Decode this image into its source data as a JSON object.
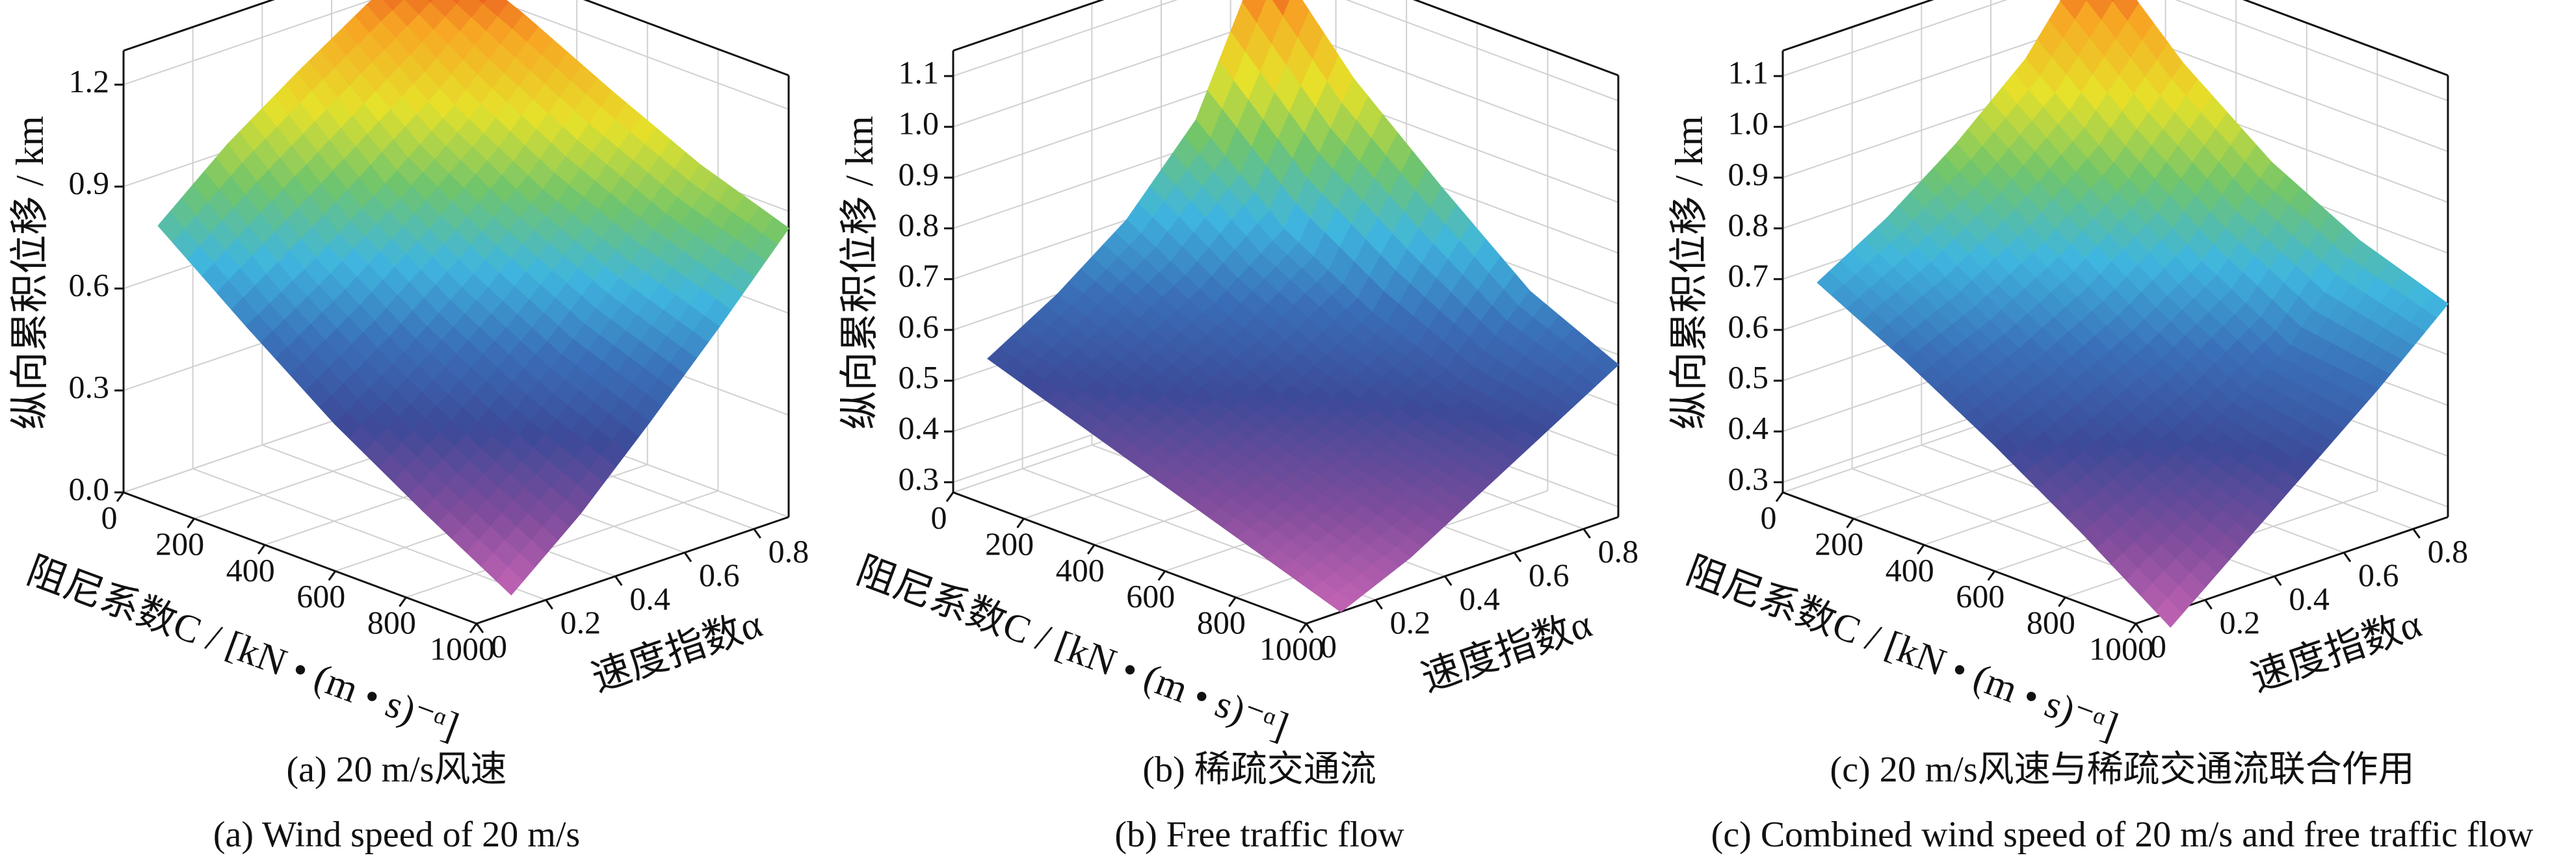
{
  "chart_data": [
    {
      "type": "surface",
      "title": "(a) 20 m/s风速",
      "subtitle": "(a) Wind speed of 20 m/s",
      "xlabel": "阻尼系数C / [kN • (m • s)⁻ᵅ]",
      "ylabel": "速度指数α",
      "zlabel": "纵向累积位移 / km",
      "x": [
        0,
        250,
        500,
        750,
        1000
      ],
      "y": [
        0.1,
        0.3,
        0.5,
        0.7,
        0.9
      ],
      "values": [
        [
          0.75,
          0.92,
          1.06,
          1.19,
          1.3
        ],
        [
          0.55,
          0.68,
          0.83,
          0.99,
          1.19
        ],
        [
          0.36,
          0.5,
          0.66,
          0.84,
          1.06
        ],
        [
          0.2,
          0.35,
          0.52,
          0.72,
          0.94
        ],
        [
          0.05,
          0.22,
          0.42,
          0.63,
          0.85
        ]
      ],
      "xlim": [
        0,
        1000
      ],
      "xticks": [
        0,
        200,
        400,
        600,
        800,
        1000
      ],
      "ylim": [
        0,
        0.9
      ],
      "yticks": [
        0,
        0.2,
        0.4,
        0.6,
        0.8
      ],
      "zlim": [
        0,
        1.3
      ],
      "zticks": [
        {
          "value": 0,
          "label": "0.0"
        },
        0.3,
        0.6,
        0.9,
        1.2
      ],
      "grid": true,
      "colormap": [
        "#c664b4",
        "#7e4c9c",
        "#3c4a98",
        "#3a6fb8",
        "#3fb6df",
        "#71c56b",
        "#e6e12a",
        "#f7a624",
        "#e3271f"
      ]
    },
    {
      "type": "surface",
      "title": "(b) 稀疏交通流",
      "subtitle": "(b) Free traffic flow",
      "xlabel": "阻尼系数C / [kN • (m • s)⁻ᵅ]",
      "ylabel": "速度指数α",
      "zlabel": "纵向累积位移  /  km",
      "x": [
        0,
        250,
        500,
        750,
        1000
      ],
      "y": [
        0.1,
        0.3,
        0.5,
        0.7,
        0.9
      ],
      "values": [
        [
          0.52,
          0.6,
          0.7,
          0.85,
          1.15
        ],
        [
          0.46,
          0.53,
          0.6,
          0.7,
          0.95
        ],
        [
          0.4,
          0.46,
          0.52,
          0.6,
          0.8
        ],
        [
          0.34,
          0.4,
          0.46,
          0.53,
          0.66
        ],
        [
          0.28,
          0.34,
          0.42,
          0.5,
          0.58
        ]
      ],
      "xlim": [
        0,
        1000
      ],
      "xticks": [
        0,
        200,
        400,
        600,
        800,
        1000
      ],
      "ylim": [
        0,
        0.9
      ],
      "yticks": [
        0,
        0.2,
        0.4,
        0.6,
        0.8
      ],
      "zlim": [
        0.28,
        1.15
      ],
      "zticks": [
        0.3,
        0.4,
        0.5,
        0.6,
        0.7,
        0.8,
        0.9,
        {
          "value": 1,
          "label": "1.0"
        },
        1.1
      ],
      "grid": true,
      "colormap": [
        "#c664b4",
        "#7e4c9c",
        "#3c4a98",
        "#3a6fb8",
        "#3fb6df",
        "#71c56b",
        "#e6e12a",
        "#f7a624",
        "#e3271f"
      ]
    },
    {
      "type": "surface",
      "title": "(c) 20 m/s风速与稀疏交通流联合作用",
      "subtitle": "(c) Combined wind speed of 20 m/s and free traffic flow",
      "xlabel": "阻尼系数C / [kN • (m • s)⁻ᵅ]",
      "ylabel": "速度指数α",
      "zlabel": "纵向累积位移  /  km",
      "x": [
        0,
        250,
        500,
        750,
        1000
      ],
      "y": [
        0.1,
        0.3,
        0.5,
        0.7,
        0.9
      ],
      "values": [
        [
          0.67,
          0.75,
          0.85,
          0.97,
          1.15
        ],
        [
          0.58,
          0.64,
          0.72,
          0.83,
          0.98
        ],
        [
          0.48,
          0.54,
          0.61,
          0.7,
          0.85
        ],
        [
          0.37,
          0.44,
          0.51,
          0.6,
          0.76
        ],
        [
          0.25,
          0.36,
          0.47,
          0.58,
          0.7
        ]
      ],
      "xlim": [
        0,
        1000
      ],
      "xticks": [
        0,
        200,
        400,
        600,
        800,
        1000
      ],
      "ylim": [
        0,
        0.9
      ],
      "yticks": [
        0,
        0.2,
        0.4,
        0.6,
        0.8
      ],
      "zlim": [
        0.28,
        1.15
      ],
      "zticks": [
        0.3,
        0.4,
        0.5,
        0.6,
        0.7,
        0.8,
        0.9,
        {
          "value": 1,
          "label": "1.0"
        },
        1.1
      ],
      "grid": true,
      "colormap": [
        "#c664b4",
        "#7e4c9c",
        "#3c4a98",
        "#3a6fb8",
        "#3fb6df",
        "#71c56b",
        "#e6e12a",
        "#f7a624",
        "#e3271f"
      ]
    }
  ]
}
